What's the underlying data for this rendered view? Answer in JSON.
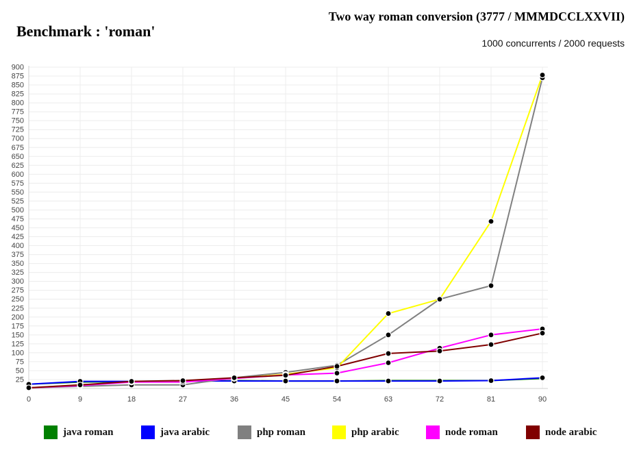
{
  "header": {
    "title": "Benchmark : 'roman'",
    "right_title": "Two way roman conversion (3777 / MMMDCCLXXVII)",
    "subtitle": "1000 concurrents / 2000 requests"
  },
  "chart_data": {
    "type": "line",
    "title": "Two way roman conversion (3777 / MMMDCCLXXVII)",
    "subtitle": "1000 concurrents / 2000 requests",
    "xlabel": "",
    "ylabel": "",
    "x": [
      0,
      9,
      18,
      27,
      36,
      45,
      54,
      63,
      72,
      81,
      90
    ],
    "xlim": [
      0,
      90
    ],
    "ylim": [
      0,
      900
    ],
    "y_ticks": [
      25,
      50,
      75,
      100,
      125,
      150,
      175,
      200,
      225,
      250,
      275,
      300,
      325,
      350,
      375,
      400,
      425,
      450,
      475,
      500,
      525,
      550,
      575,
      600,
      625,
      650,
      675,
      700,
      725,
      750,
      775,
      800,
      825,
      850,
      875,
      900
    ],
    "grid": true,
    "legend_position": "bottom",
    "series": [
      {
        "name": "java roman",
        "color": "#008000",
        "values": [
          12,
          18,
          19,
          20,
          22,
          21,
          21,
          22,
          22,
          22,
          28
        ]
      },
      {
        "name": "java arabic",
        "color": "#0000ff",
        "values": [
          12,
          20,
          20,
          21,
          21,
          21,
          21,
          21,
          21,
          22,
          30
        ]
      },
      {
        "name": "php roman",
        "color": "#808080",
        "values": [
          2,
          6,
          10,
          10,
          30,
          45,
          65,
          150,
          250,
          288,
          870
        ]
      },
      {
        "name": "php arabic",
        "color": "#ffff00",
        "values": [
          2,
          10,
          18,
          20,
          28,
          40,
          58,
          210,
          250,
          468,
          878
        ]
      },
      {
        "name": "node roman",
        "color": "#ff00ff",
        "values": [
          2,
          8,
          18,
          18,
          28,
          38,
          43,
          72,
          113,
          150,
          167
        ]
      },
      {
        "name": "node arabic",
        "color": "#800000",
        "values": [
          2,
          10,
          20,
          22,
          30,
          37,
          62,
          98,
          105,
          123,
          155
        ]
      }
    ]
  }
}
